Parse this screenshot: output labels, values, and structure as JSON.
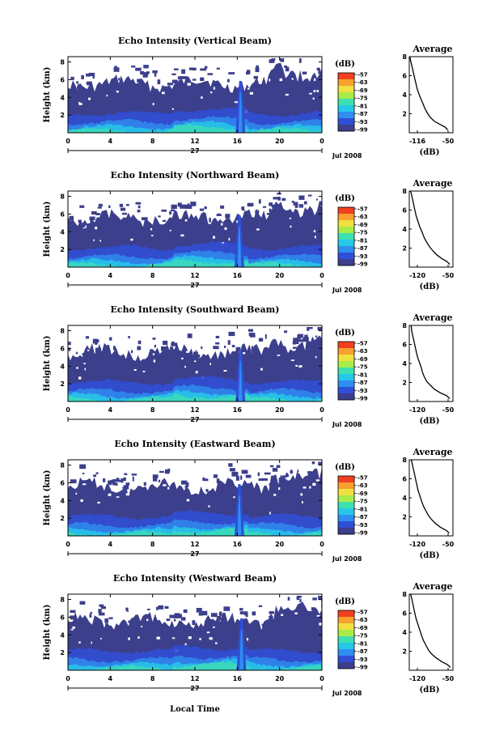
{
  "chart_data": [
    {
      "type": "heatmap",
      "title": "Echo Intensity (Vertical Beam)",
      "ylabel": "Height (km)",
      "xticks": [
        "0",
        "4",
        "8",
        "12",
        "16",
        "20",
        "0"
      ],
      "date_day": "27",
      "date_label": "Jul 2008",
      "yticks": [
        "8",
        "6",
        "4",
        "2"
      ],
      "colorbar_unit": "(dB)",
      "colorbar_ticks": [
        "-57",
        "-63",
        "-69",
        "-75",
        "-81",
        "-87",
        "-93",
        "-99"
      ],
      "spike_hour": 16.3,
      "avg_title": "Average",
      "avg_xlabel": "(dB)",
      "avg_xticks": [
        "-116",
        "-50"
      ],
      "avg_xlim": [
        -116,
        -50
      ],
      "avg_yticks": [
        "8",
        "6",
        "4",
        "2"
      ],
      "avg_ylim": [
        0,
        8
      ],
      "profile": [
        [
          -58,
          0.3
        ],
        [
          -62,
          0.6
        ],
        [
          -70,
          0.9
        ],
        [
          -78,
          1.2
        ],
        [
          -84,
          1.6
        ],
        [
          -88,
          2.0
        ],
        [
          -92,
          2.5
        ],
        [
          -95,
          3.0
        ],
        [
          -98,
          3.5
        ],
        [
          -101,
          4.0
        ],
        [
          -104,
          4.6
        ],
        [
          -106,
          5.2
        ],
        [
          -108,
          5.8
        ],
        [
          -110,
          6.4
        ],
        [
          -112,
          7.0
        ],
        [
          -114,
          7.6
        ],
        [
          -115,
          8.0
        ]
      ]
    },
    {
      "type": "heatmap",
      "title": "Echo Intensity (Northward Beam)",
      "ylabel": "Height (km)",
      "xticks": [
        "0",
        "4",
        "8",
        "12",
        "16",
        "20",
        "0"
      ],
      "date_day": "27",
      "date_label": "Jul 2008",
      "yticks": [
        "8",
        "6",
        "4",
        "2"
      ],
      "colorbar_unit": "(dB)",
      "colorbar_ticks": [
        "-57",
        "-63",
        "-69",
        "-75",
        "-81",
        "-87",
        "-93",
        "-99"
      ],
      "spike_hour": 16.2,
      "avg_title": "Average",
      "avg_xlabel": "(dB)",
      "avg_xticks": [
        "-120",
        "-50"
      ],
      "avg_xlim": [
        -120,
        -50
      ],
      "avg_yticks": [
        "8",
        "6",
        "4",
        "2"
      ],
      "avg_ylim": [
        0,
        8
      ],
      "profile": [
        [
          -55,
          0.3
        ],
        [
          -60,
          0.6
        ],
        [
          -68,
          0.9
        ],
        [
          -76,
          1.3
        ],
        [
          -82,
          1.7
        ],
        [
          -87,
          2.1
        ],
        [
          -92,
          2.6
        ],
        [
          -96,
          3.1
        ],
        [
          -99,
          3.6
        ],
        [
          -103,
          4.2
        ],
        [
          -106,
          4.8
        ],
        [
          -109,
          5.4
        ],
        [
          -111,
          6.0
        ],
        [
          -113,
          6.6
        ],
        [
          -115,
          7.2
        ],
        [
          -117,
          7.8
        ],
        [
          -118,
          8.0
        ]
      ]
    },
    {
      "type": "heatmap",
      "title": "Echo Intensity (Southward Beam)",
      "ylabel": "Height (km)",
      "xticks": [
        "0",
        "4",
        "8",
        "12",
        "16",
        "20",
        "0"
      ],
      "date_day": "27",
      "date_label": "Jul 2008",
      "yticks": [
        "8",
        "6",
        "4",
        "2"
      ],
      "colorbar_unit": "(dB)",
      "colorbar_ticks": [
        "-57",
        "-63",
        "-69",
        "-75",
        "-81",
        "-87",
        "-93",
        "-99"
      ],
      "spike_hour": 16.3,
      "avg_title": "Average",
      "avg_xlabel": "(dB)",
      "avg_xticks": [
        "-120",
        "-50"
      ],
      "avg_xlim": [
        -120,
        -50
      ],
      "avg_yticks": [
        "8",
        "6",
        "4",
        "2"
      ],
      "avg_ylim": [
        0,
        8
      ],
      "profile": [
        [
          -55,
          0.3
        ],
        [
          -60,
          0.6
        ],
        [
          -70,
          0.9
        ],
        [
          -80,
          1.3
        ],
        [
          -86,
          1.7
        ],
        [
          -92,
          2.1
        ],
        [
          -96,
          2.6
        ],
        [
          -99,
          3.1
        ],
        [
          -101,
          3.6
        ],
        [
          -103,
          4.0
        ],
        [
          -106,
          4.5
        ],
        [
          -108,
          5.0
        ],
        [
          -110,
          5.6
        ],
        [
          -112,
          6.2
        ],
        [
          -114,
          6.8
        ],
        [
          -116,
          7.4
        ],
        [
          -117,
          8.0
        ]
      ]
    },
    {
      "type": "heatmap",
      "title": "Echo Intensity (Eastward Beam)",
      "ylabel": "Height (km)",
      "xticks": [
        "0",
        "4",
        "8",
        "12",
        "16",
        "20",
        "0"
      ],
      "date_day": "27",
      "date_label": "Jul 2008",
      "yticks": [
        "8",
        "6",
        "4",
        "2"
      ],
      "colorbar_unit": "(dB)",
      "colorbar_ticks": [
        "-57",
        "-63",
        "-69",
        "-75",
        "-81",
        "-87",
        "-93",
        "-99"
      ],
      "spike_hour": 16.2,
      "avg_title": "Average",
      "avg_xlabel": "(dB)",
      "avg_xticks": [
        "-120",
        "-50"
      ],
      "avg_xlim": [
        -120,
        -50
      ],
      "avg_yticks": [
        "8",
        "6",
        "4",
        "2"
      ],
      "avg_ylim": [
        0,
        8
      ],
      "profile": [
        [
          -56,
          0.3
        ],
        [
          -61,
          0.6
        ],
        [
          -70,
          0.9
        ],
        [
          -78,
          1.3
        ],
        [
          -84,
          1.7
        ],
        [
          -89,
          2.1
        ],
        [
          -93,
          2.6
        ],
        [
          -97,
          3.1
        ],
        [
          -100,
          3.6
        ],
        [
          -103,
          4.2
        ],
        [
          -106,
          4.8
        ],
        [
          -108,
          5.4
        ],
        [
          -110,
          6.0
        ],
        [
          -112,
          6.6
        ],
        [
          -114,
          7.2
        ],
        [
          -116,
          7.8
        ],
        [
          -117,
          8.0
        ]
      ]
    },
    {
      "type": "heatmap",
      "title": "Echo Intensity (Westward Beam)",
      "ylabel": "Height (km)",
      "xticks": [
        "0",
        "4",
        "8",
        "12",
        "16",
        "20",
        "0"
      ],
      "date_day": "27",
      "date_label": "Jul 2008",
      "yticks": [
        "8",
        "6",
        "4",
        "2"
      ],
      "colorbar_unit": "(dB)",
      "colorbar_ticks": [
        "-57",
        "-63",
        "-69",
        "-75",
        "-81",
        "-87",
        "-93",
        "-99"
      ],
      "spike_hour": 16.4,
      "avg_title": "Average",
      "avg_xlabel": "(dB)",
      "avg_xticks": [
        "-120",
        "-50"
      ],
      "avg_xlim": [
        -120,
        -50
      ],
      "avg_yticks": [
        "8",
        "6",
        "4",
        "2"
      ],
      "avg_ylim": [
        0,
        8
      ],
      "profile": [
        [
          -54,
          0.3
        ],
        [
          -59,
          0.6
        ],
        [
          -68,
          0.9
        ],
        [
          -77,
          1.3
        ],
        [
          -84,
          1.7
        ],
        [
          -89,
          2.1
        ],
        [
          -93,
          2.6
        ],
        [
          -97,
          3.1
        ],
        [
          -100,
          3.6
        ],
        [
          -103,
          4.2
        ],
        [
          -106,
          4.8
        ],
        [
          -109,
          5.4
        ],
        [
          -111,
          6.0
        ],
        [
          -113,
          6.6
        ],
        [
          -115,
          7.2
        ],
        [
          -117,
          7.8
        ],
        [
          -118,
          8.0
        ]
      ]
    }
  ],
  "xlabel": "Local Time",
  "colorbar_colors": [
    "#3c3f8c",
    "#2f4fd8",
    "#2f8ff0",
    "#26c8e8",
    "#3fe0b0",
    "#a8ec4a",
    "#f0e040",
    "#f8a030",
    "#f04020"
  ]
}
